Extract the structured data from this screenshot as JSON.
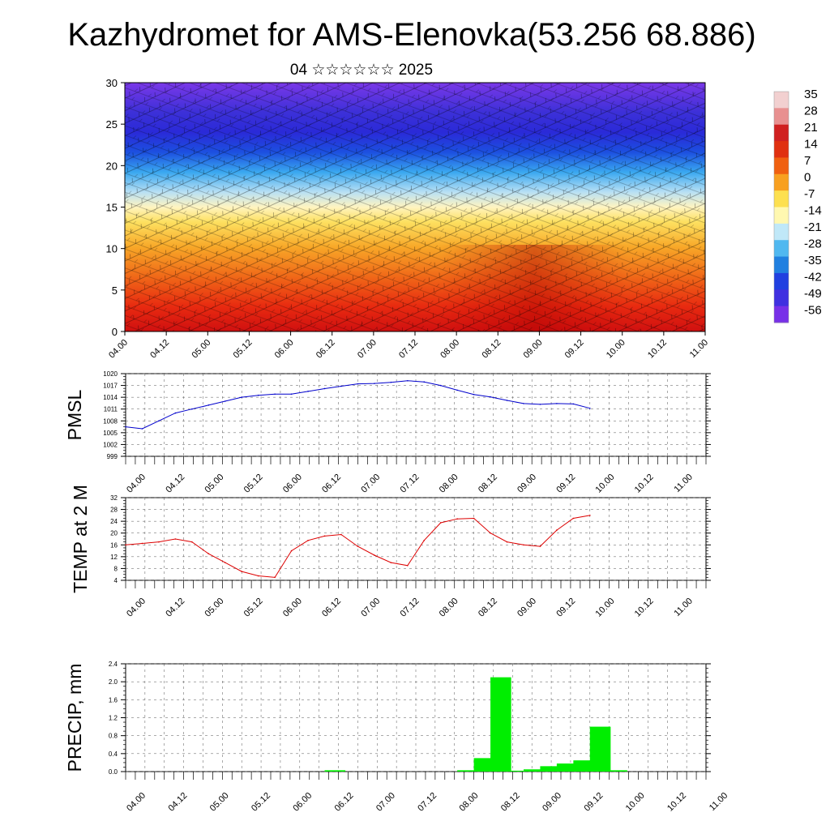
{
  "title": "Kazhydromet for AMS-Elenovka(53.256 68.886)",
  "subtitle": "04 ☆☆☆☆☆☆ 2025",
  "time_labels": [
    "04.00",
    "04.12",
    "05.00",
    "05.12",
    "06.00",
    "06.12",
    "07.00",
    "07.12",
    "08.00",
    "08.12",
    "09.00",
    "09.12",
    "10.00",
    "10.12",
    "11.00"
  ],
  "colorbar": {
    "labels": [
      "35",
      "28",
      "21",
      "14",
      "7",
      "0",
      "-7",
      "-14",
      "-21",
      "-28",
      "-35",
      "-42",
      "-49",
      "-56"
    ],
    "colors": [
      "#f2d0d0",
      "#e89090",
      "#d02020",
      "#e03010",
      "#f06010",
      "#f8a020",
      "#fde050",
      "#fff8b0",
      "#c0e8f8",
      "#50b8f0",
      "#2080e0",
      "#2040e0",
      "#4030e0",
      "#7830e8"
    ]
  },
  "chart_data": [
    {
      "type": "heatmap",
      "title": "",
      "ylabel": "",
      "xlim": [
        0,
        84
      ],
      "ylim": [
        0,
        30
      ],
      "yticks": [
        "0",
        "5",
        "10",
        "15",
        "20",
        "25",
        "30"
      ],
      "x_ticks": [
        "04.00",
        "04.12",
        "05.00",
        "05.12",
        "06.00",
        "06.12",
        "07.00",
        "07.12",
        "08.00",
        "08.12",
        "09.00",
        "09.12",
        "10.00",
        "10.12",
        "11.00"
      ],
      "value_range": [
        -56,
        35
      ],
      "description_vertical_profile": {
        "levels": [
          0,
          5,
          10,
          15,
          20,
          25,
          30
        ],
        "approx_values": [
          21,
          14,
          7,
          -7,
          -35,
          -56,
          -56
        ]
      },
      "overlay": "wind barbs"
    },
    {
      "type": "line",
      "ylabel": "PMSL",
      "ylim": [
        999,
        1020
      ],
      "yticks": [
        "999",
        "1002",
        "1005",
        "1008",
        "1011",
        "1014",
        "1017",
        "1020"
      ],
      "x_ticks": [
        "04.00",
        "04.12",
        "05.00",
        "05.12",
        "06.00",
        "06.12",
        "07.00",
        "07.12",
        "08.00",
        "08.12",
        "09.00",
        "09.12",
        "10.00",
        "10.12",
        "11.00"
      ],
      "color": "#0000cc",
      "series": [
        {
          "x": [
            0,
            3,
            6,
            9,
            12,
            15,
            18,
            21,
            24,
            27,
            30,
            33,
            36,
            39,
            42,
            45,
            48,
            51,
            54,
            57,
            60,
            63,
            66,
            69,
            72,
            75,
            78,
            81,
            84
          ],
          "values": [
            1006.5,
            1006,
            1008,
            1010,
            1011,
            1012,
            1013,
            1014,
            1014.5,
            1014.8,
            1014.8,
            1015.5,
            1016.2,
            1016.8,
            1017.4,
            1017.5,
            1017.8,
            1018.2,
            1017.9,
            1017,
            1015.8,
            1014.7,
            1014.1,
            1013.2,
            1012.4,
            1012.2,
            1012.4,
            1012.3,
            1011.2
          ]
        }
      ]
    },
    {
      "type": "line",
      "ylabel": "TEMP at 2 M",
      "ylim": [
        4,
        32
      ],
      "yticks": [
        "4",
        "8",
        "12",
        "16",
        "20",
        "24",
        "28",
        "32"
      ],
      "x_ticks": [
        "04.00",
        "04.12",
        "05.00",
        "05.12",
        "06.00",
        "06.12",
        "07.00",
        "07.12",
        "08.00",
        "08.12",
        "09.00",
        "09.12",
        "10.00",
        "10.12",
        "11.00"
      ],
      "color": "#dd0000",
      "series": [
        {
          "x": [
            0,
            3,
            6,
            9,
            12,
            15,
            18,
            21,
            24,
            27,
            30,
            33,
            36,
            39,
            42,
            45,
            48,
            51,
            54,
            57,
            60,
            63,
            66,
            69,
            72,
            75,
            78,
            81,
            84
          ],
          "values": [
            16,
            16.5,
            17,
            18,
            17,
            13,
            10,
            7,
            5.5,
            5,
            14,
            17.5,
            19,
            19.5,
            15.5,
            12.5,
            10,
            9,
            17.5,
            23.5,
            24.8,
            25,
            20,
            17,
            16,
            15.5,
            21,
            25,
            26
          ]
        }
      ]
    },
    {
      "type": "bar",
      "ylabel": "PRECIP, mm",
      "ylim": [
        0,
        2.4
      ],
      "yticks": [
        "0.0",
        "0.4",
        "0.8",
        "1.2",
        "1.6",
        "2.0",
        "2.4"
      ],
      "x_ticks": [
        "04.00",
        "04.12",
        "05.00",
        "05.12",
        "06.00",
        "06.12",
        "07.00",
        "07.12",
        "08.00",
        "08.12",
        "09.00",
        "09.12",
        "10.00",
        "10.12",
        "11.00"
      ],
      "color": "#00ee00",
      "bars": [
        {
          "x": 0,
          "value": 0.0
        },
        {
          "x": 36,
          "value": 0.03
        },
        {
          "x": 60,
          "value": 0.03
        },
        {
          "x": 63,
          "value": 0.3
        },
        {
          "x": 66,
          "value": 2.1
        },
        {
          "x": 69,
          "value": 0.02
        },
        {
          "x": 72,
          "value": 0.05
        },
        {
          "x": 75,
          "value": 0.12
        },
        {
          "x": 78,
          "value": 0.18
        },
        {
          "x": 81,
          "value": 0.25
        },
        {
          "x": 84,
          "value": 1.0
        },
        {
          "x": 87,
          "value": 0.03
        }
      ]
    }
  ]
}
